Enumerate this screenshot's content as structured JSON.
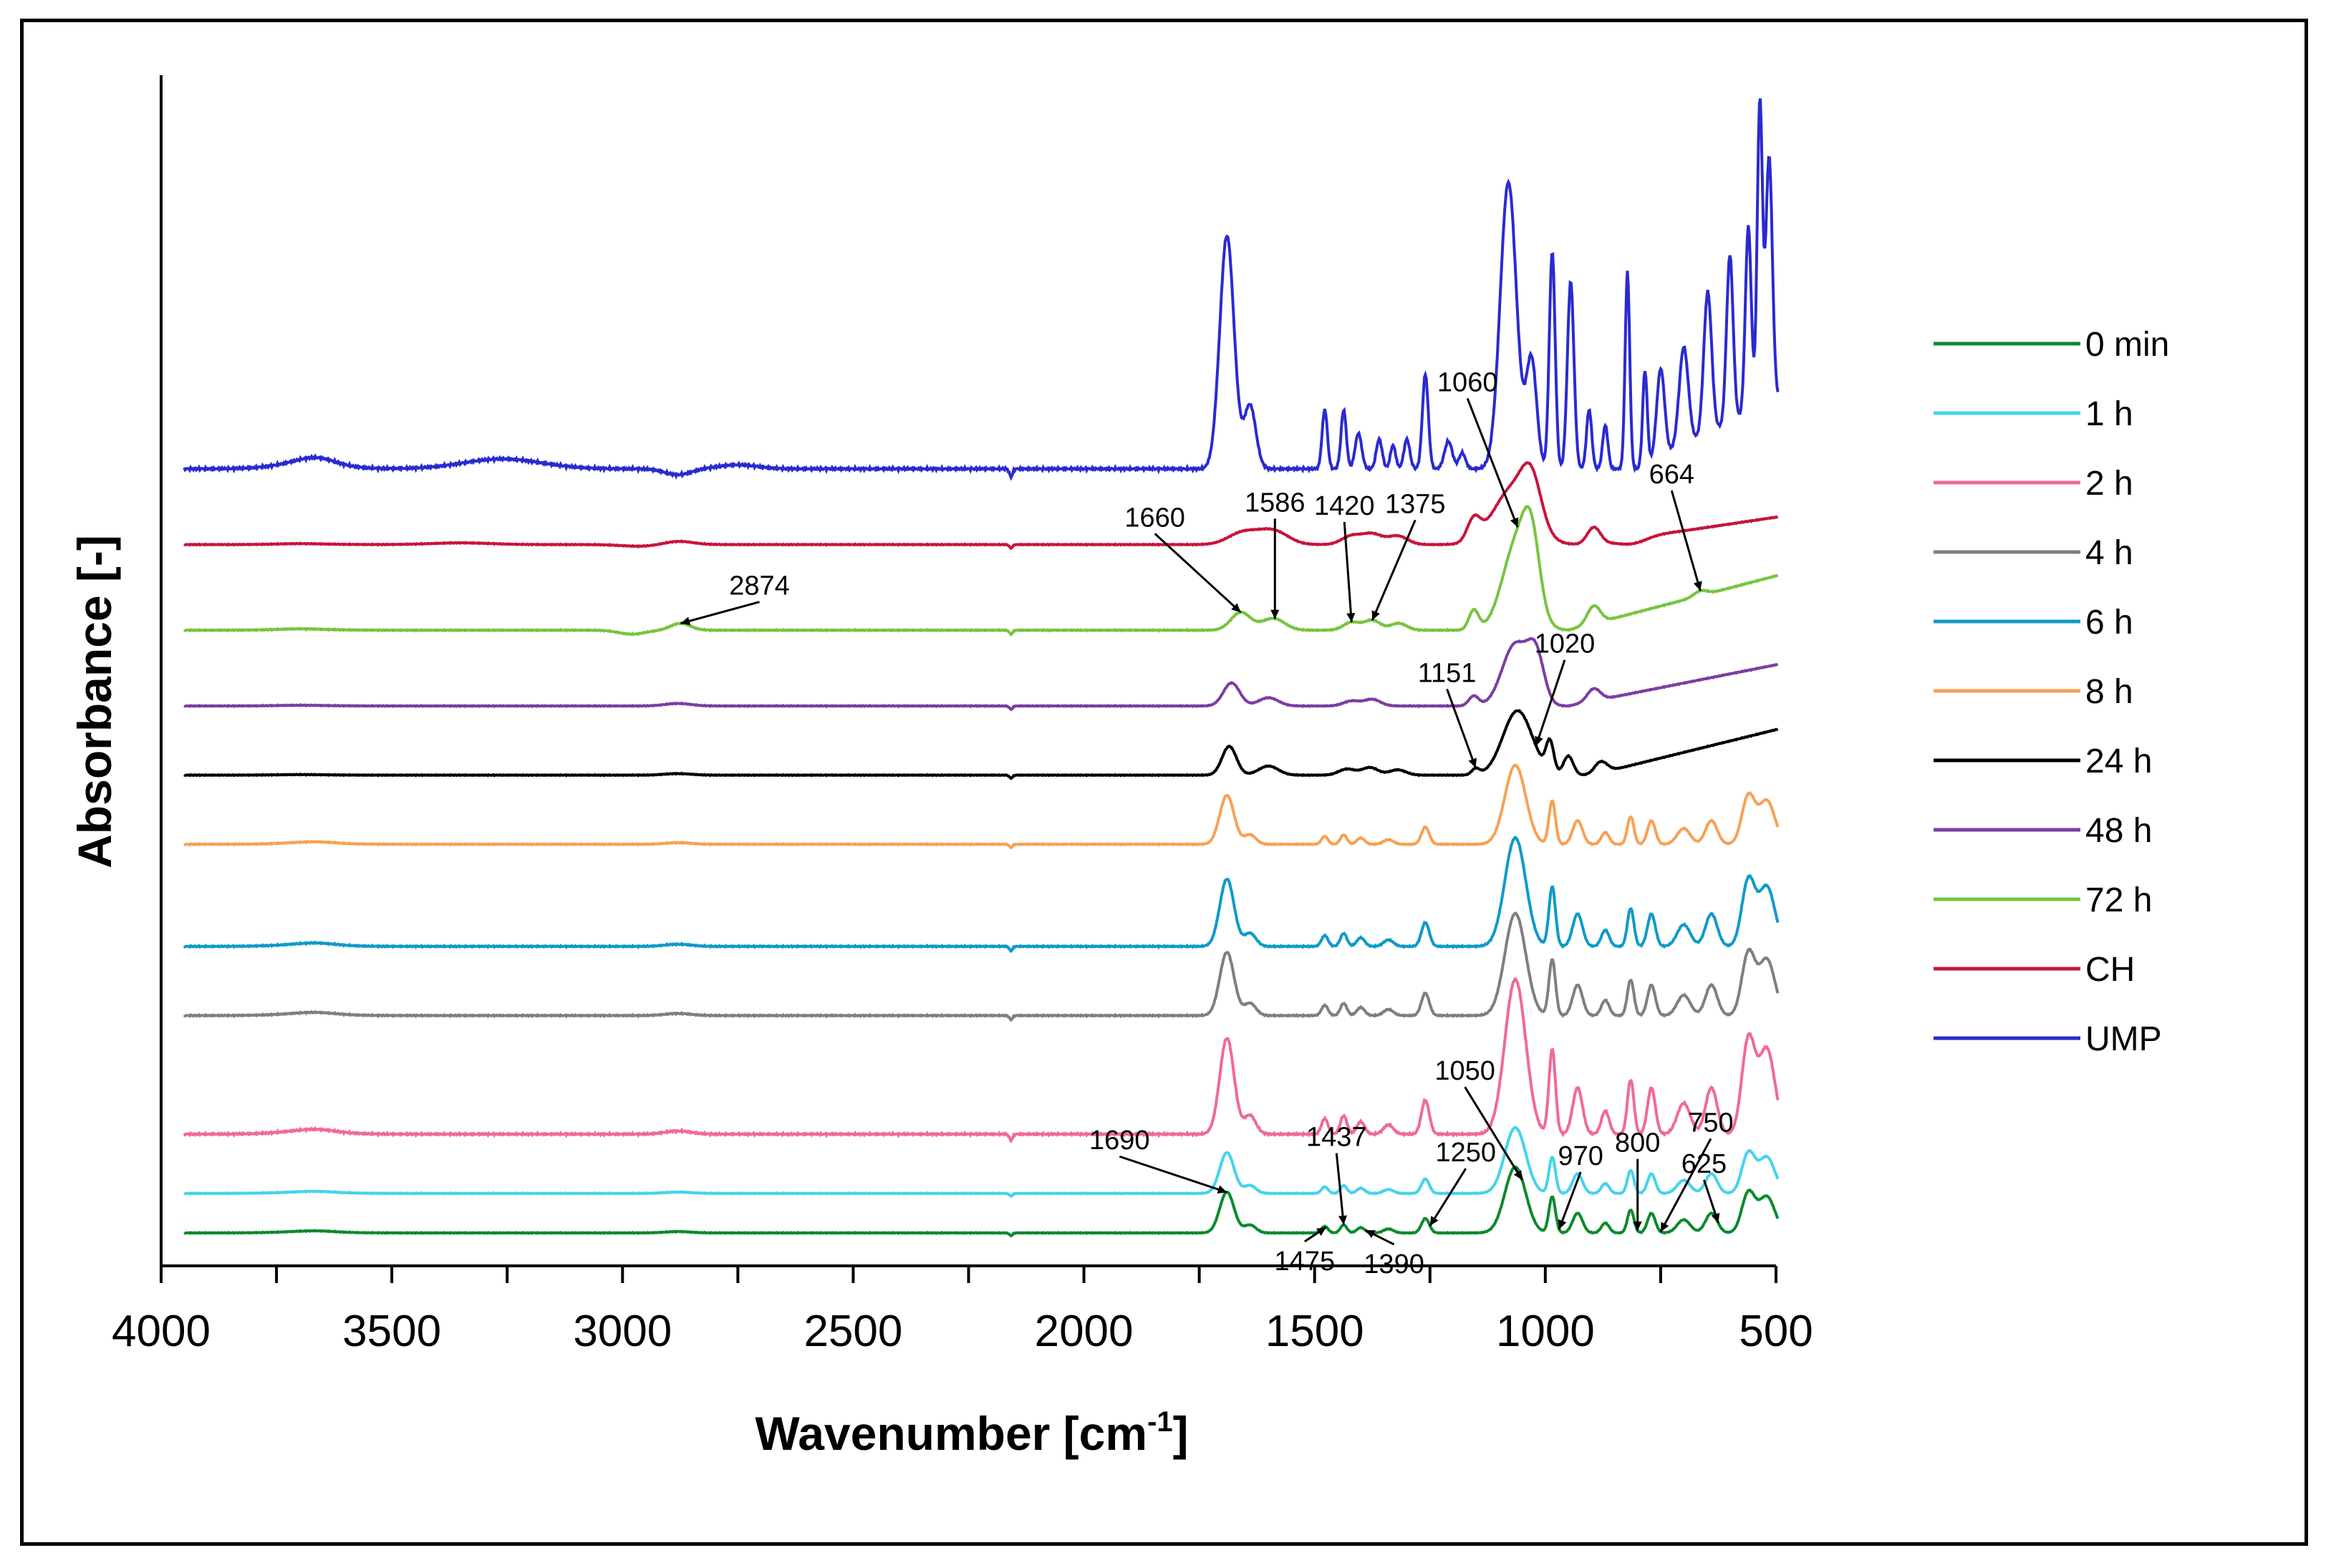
{
  "chart_data": {
    "type": "line",
    "title": "",
    "xlabel": "Wavenumber [cm",
    "xlabel_sup": "-1",
    "xlabel_end": "]",
    "ylabel": "Absorbance [-]",
    "xlim": [
      4000,
      500
    ],
    "x_reversed": true,
    "y_ticks_shown": false,
    "grid": false,
    "legend_position": "right",
    "x_ticks": [
      "4000",
      "3500",
      "3000",
      "2500",
      "2000",
      "1500",
      "1000",
      "500"
    ],
    "y_units": "arbitrary, stacked with vertical offsets",
    "series": [
      {
        "name": "0 min",
        "color": "#0b8a2c",
        "offset": 0.0,
        "height": 1.0
      },
      {
        "name": "1 h",
        "color": "#45d3ec",
        "offset": 0.6,
        "height": 1.0
      },
      {
        "name": "2 h",
        "color": "#f06a95",
        "offset": 1.5,
        "height": 2.35
      },
      {
        "name": "4 h",
        "color": "#7f7f7f",
        "offset": 3.3,
        "height": 1.55
      },
      {
        "name": "6 h",
        "color": "#0f9ac9",
        "offset": 4.35,
        "height": 1.65
      },
      {
        "name": "8 h",
        "color": "#f7a154",
        "offset": 5.9,
        "height": 1.2
      },
      {
        "name": "24 h",
        "color": "#000000",
        "offset": 6.95,
        "height": 1.15
      },
      {
        "name": "48 h",
        "color": "#7b3da3",
        "offset": 8.0,
        "height": 1.25
      },
      {
        "name": "72 h",
        "color": "#76c442",
        "offset": 9.15,
        "height": 1.5
      },
      {
        "name": "CH",
        "color": "#c8143c",
        "offset": 10.45,
        "height": 1.3
      },
      {
        "name": "UMP",
        "color": "#2a2ad1",
        "offset": 11.6,
        "height": 3.0
      }
    ],
    "annotations": [
      {
        "text": "1690",
        "x": 1690,
        "series": "0 min"
      },
      {
        "text": "1475",
        "x": 1475,
        "series": "0 min"
      },
      {
        "text": "1437",
        "x": 1437,
        "series": "0 min"
      },
      {
        "text": "1390",
        "x": 1390,
        "series": "0 min"
      },
      {
        "text": "1250",
        "x": 1250,
        "series": "0 min"
      },
      {
        "text": "1050",
        "x": 1050,
        "series": "0 min"
      },
      {
        "text": "970",
        "x": 970,
        "series": "0 min"
      },
      {
        "text": "800",
        "x": 800,
        "series": "0 min"
      },
      {
        "text": "750",
        "x": 750,
        "series": "0 min"
      },
      {
        "text": "625",
        "x": 625,
        "series": "0 min"
      },
      {
        "text": "1151",
        "x": 1151,
        "series": "24 h"
      },
      {
        "text": "1020",
        "x": 1020,
        "series": "24 h"
      },
      {
        "text": "1660",
        "x": 1660,
        "series": "72 h"
      },
      {
        "text": "1586",
        "x": 1586,
        "series": "72 h"
      },
      {
        "text": "1420",
        "x": 1420,
        "series": "72 h"
      },
      {
        "text": "1375",
        "x": 1375,
        "series": "72 h"
      },
      {
        "text": "2874",
        "x": 2874,
        "series": "72 h"
      },
      {
        "text": "1060",
        "x": 1060,
        "series": "72 h"
      },
      {
        "text": "664",
        "x": 664,
        "series": "72 h"
      }
    ]
  }
}
